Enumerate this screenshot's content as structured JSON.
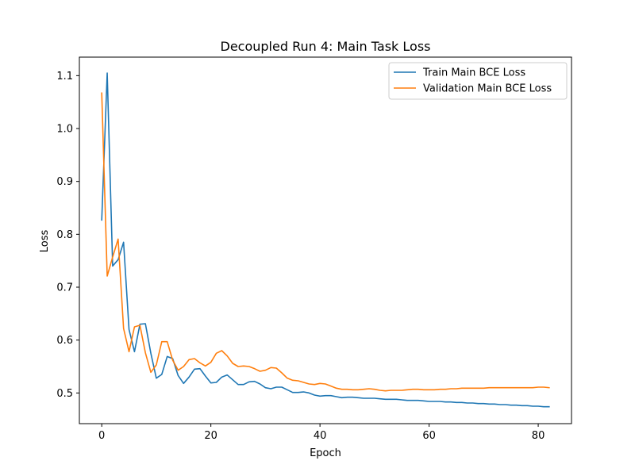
{
  "chart_data": {
    "type": "line",
    "title": "Decoupled Run 4: Main Task Loss",
    "xlabel": "Epoch",
    "ylabel": "Loss",
    "xlim": [
      -4.1,
      86.1
    ],
    "ylim": [
      0.442,
      1.135
    ],
    "xticks": [
      0,
      20,
      40,
      60,
      80
    ],
    "xtick_labels": [
      "0",
      "20",
      "40",
      "60",
      "80"
    ],
    "yticks": [
      0.5,
      0.6,
      0.7,
      0.8,
      0.9,
      1.0,
      1.1
    ],
    "ytick_labels": [
      "0.5",
      "0.6",
      "0.7",
      "0.8",
      "0.9",
      "1.0",
      "1.1"
    ],
    "grid": false,
    "legend_position": "top-right",
    "x": [
      0,
      1,
      2,
      3,
      4,
      5,
      6,
      7,
      8,
      9,
      10,
      11,
      12,
      13,
      14,
      15,
      16,
      17,
      18,
      19,
      20,
      21,
      22,
      23,
      24,
      25,
      26,
      27,
      28,
      29,
      30,
      31,
      32,
      33,
      34,
      35,
      36,
      37,
      38,
      39,
      40,
      41,
      42,
      43,
      44,
      45,
      46,
      47,
      48,
      49,
      50,
      51,
      52,
      53,
      54,
      55,
      56,
      57,
      58,
      59,
      60,
      61,
      62,
      63,
      64,
      65,
      66,
      67,
      68,
      69,
      70,
      71,
      72,
      73,
      74,
      75,
      76,
      77,
      78,
      79,
      80,
      81,
      82
    ],
    "series": [
      {
        "name": "Train Main BCE Loss",
        "color": "#1f77b4",
        "values": [
          0.827,
          1.105,
          0.74,
          0.752,
          0.785,
          0.62,
          0.578,
          0.63,
          0.631,
          0.575,
          0.528,
          0.535,
          0.569,
          0.565,
          0.533,
          0.518,
          0.53,
          0.545,
          0.546,
          0.532,
          0.519,
          0.52,
          0.53,
          0.534,
          0.525,
          0.516,
          0.516,
          0.521,
          0.522,
          0.517,
          0.51,
          0.508,
          0.511,
          0.511,
          0.506,
          0.501,
          0.501,
          0.502,
          0.5,
          0.496,
          0.494,
          0.495,
          0.495,
          0.493,
          0.491,
          0.492,
          0.492,
          0.491,
          0.49,
          0.49,
          0.49,
          0.489,
          0.488,
          0.488,
          0.488,
          0.487,
          0.486,
          0.486,
          0.486,
          0.485,
          0.484,
          0.484,
          0.484,
          0.483,
          0.483,
          0.482,
          0.482,
          0.481,
          0.481,
          0.48,
          0.48,
          0.479,
          0.479,
          0.478,
          0.478,
          0.477,
          0.477,
          0.476,
          0.476,
          0.475,
          0.475,
          0.474,
          0.474
        ]
      },
      {
        "name": "Validation Main BCE Loss",
        "color": "#ff7f0e",
        "values": [
          1.067,
          0.721,
          0.757,
          0.791,
          0.622,
          0.578,
          0.625,
          0.628,
          0.576,
          0.539,
          0.553,
          0.597,
          0.597,
          0.562,
          0.543,
          0.55,
          0.563,
          0.565,
          0.557,
          0.551,
          0.558,
          0.575,
          0.58,
          0.57,
          0.556,
          0.55,
          0.551,
          0.55,
          0.546,
          0.541,
          0.543,
          0.548,
          0.547,
          0.538,
          0.528,
          0.524,
          0.523,
          0.52,
          0.517,
          0.516,
          0.518,
          0.517,
          0.513,
          0.509,
          0.507,
          0.507,
          0.506,
          0.506,
          0.507,
          0.508,
          0.507,
          0.505,
          0.504,
          0.505,
          0.505,
          0.505,
          0.506,
          0.507,
          0.507,
          0.506,
          0.506,
          0.506,
          0.507,
          0.507,
          0.508,
          0.508,
          0.509,
          0.509,
          0.509,
          0.509,
          0.509,
          0.51,
          0.51,
          0.51,
          0.51,
          0.51,
          0.51,
          0.51,
          0.51,
          0.51,
          0.511,
          0.511,
          0.51
        ]
      }
    ]
  }
}
